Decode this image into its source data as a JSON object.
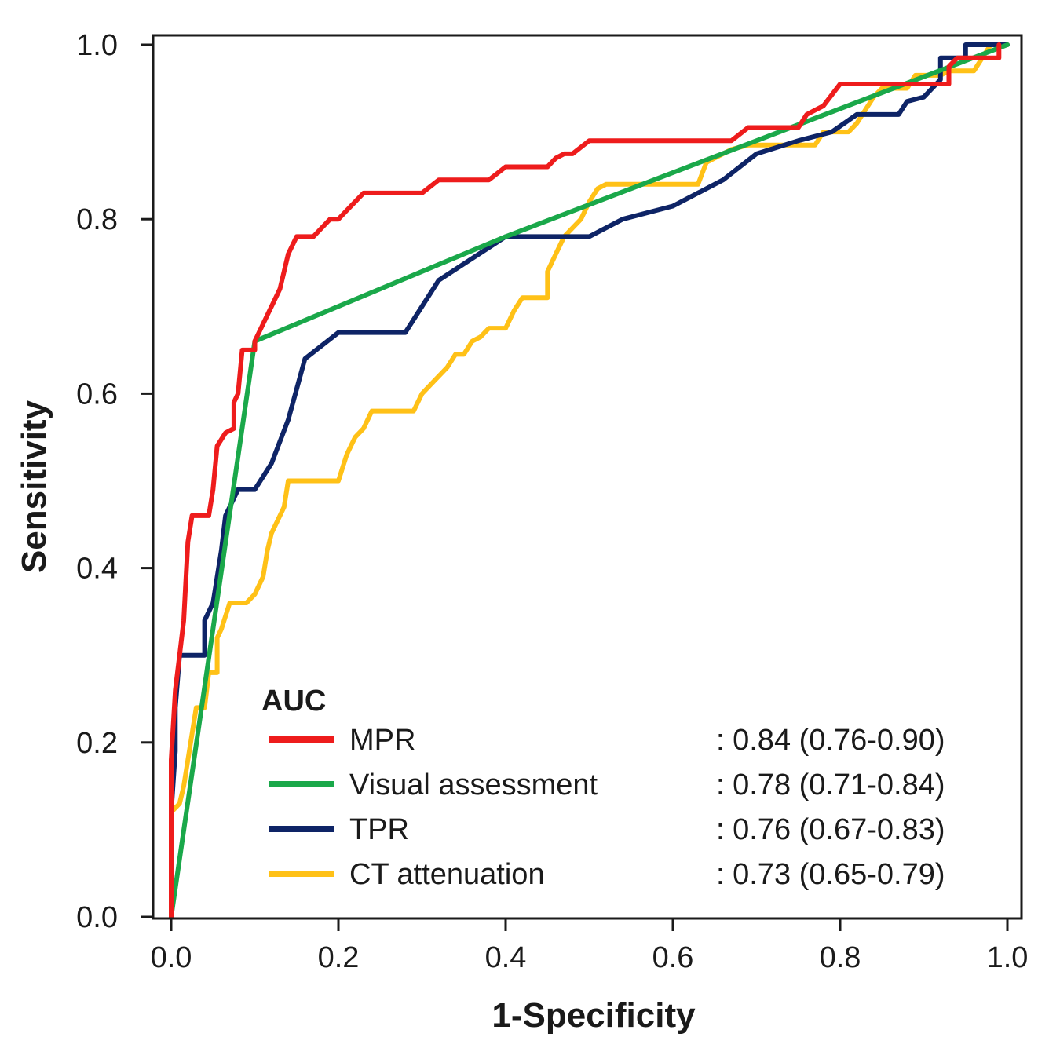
{
  "chart_data": {
    "type": "line",
    "title": "",
    "xlabel": "1-Specificity",
    "ylabel": "Sensitivity",
    "xlim": [
      0,
      1
    ],
    "ylim": [
      0,
      1
    ],
    "x_ticks": [
      "0.0",
      "0.2",
      "0.4",
      "0.6",
      "0.8",
      "1.0"
    ],
    "y_ticks": [
      "0.0",
      "0.2",
      "0.4",
      "0.6",
      "0.8",
      "1.0"
    ],
    "grid": false,
    "legend": {
      "title": "AUC",
      "placement": "bottom-right"
    },
    "series": [
      {
        "name": "MPR",
        "auc_label": ": 0.84 (0.76-0.90)",
        "color": "#ee1c1c",
        "points": [
          [
            0,
            0
          ],
          [
            0,
            0.18
          ],
          [
            0.005,
            0.26
          ],
          [
            0.01,
            0.3
          ],
          [
            0.015,
            0.34
          ],
          [
            0.02,
            0.43
          ],
          [
            0.025,
            0.46
          ],
          [
            0.045,
            0.46
          ],
          [
            0.05,
            0.49
          ],
          [
            0.055,
            0.54
          ],
          [
            0.065,
            0.555
          ],
          [
            0.075,
            0.56
          ],
          [
            0.075,
            0.59
          ],
          [
            0.08,
            0.6
          ],
          [
            0.085,
            0.65
          ],
          [
            0.1,
            0.65
          ],
          [
            0.1,
            0.66
          ],
          [
            0.11,
            0.68
          ],
          [
            0.12,
            0.7
          ],
          [
            0.13,
            0.72
          ],
          [
            0.14,
            0.76
          ],
          [
            0.15,
            0.78
          ],
          [
            0.16,
            0.78
          ],
          [
            0.17,
            0.78
          ],
          [
            0.18,
            0.79
          ],
          [
            0.19,
            0.8
          ],
          [
            0.2,
            0.8
          ],
          [
            0.21,
            0.81
          ],
          [
            0.22,
            0.82
          ],
          [
            0.23,
            0.83
          ],
          [
            0.3,
            0.83
          ],
          [
            0.32,
            0.845
          ],
          [
            0.38,
            0.845
          ],
          [
            0.4,
            0.86
          ],
          [
            0.45,
            0.86
          ],
          [
            0.46,
            0.87
          ],
          [
            0.47,
            0.875
          ],
          [
            0.48,
            0.875
          ],
          [
            0.5,
            0.89
          ],
          [
            0.67,
            0.89
          ],
          [
            0.69,
            0.905
          ],
          [
            0.75,
            0.905
          ],
          [
            0.76,
            0.92
          ],
          [
            0.78,
            0.93
          ],
          [
            0.8,
            0.955
          ],
          [
            0.93,
            0.955
          ],
          [
            0.93,
            0.975
          ],
          [
            0.94,
            0.985
          ],
          [
            0.99,
            0.985
          ],
          [
            0.99,
            1.0
          ]
        ]
      },
      {
        "name": "Visual assessment",
        "auc_label": ": 0.78 (0.71-0.84)",
        "color": "#1aa84a",
        "points": [
          [
            0,
            0
          ],
          [
            0.1,
            0.66
          ],
          [
            0.4,
            0.78
          ],
          [
            1.0,
            1.0
          ]
        ]
      },
      {
        "name": "TPR",
        "auc_label": ": 0.76 (0.67-0.83)",
        "color": "#0e2466",
        "points": [
          [
            0,
            0.12
          ],
          [
            0.005,
            0.19
          ],
          [
            0.005,
            0.24
          ],
          [
            0.01,
            0.3
          ],
          [
            0.04,
            0.3
          ],
          [
            0.04,
            0.34
          ],
          [
            0.05,
            0.36
          ],
          [
            0.06,
            0.42
          ],
          [
            0.065,
            0.46
          ],
          [
            0.08,
            0.49
          ],
          [
            0.1,
            0.49
          ],
          [
            0.12,
            0.52
          ],
          [
            0.14,
            0.57
          ],
          [
            0.16,
            0.64
          ],
          [
            0.2,
            0.67
          ],
          [
            0.28,
            0.67
          ],
          [
            0.3,
            0.7
          ],
          [
            0.32,
            0.73
          ],
          [
            0.4,
            0.78
          ],
          [
            0.5,
            0.78
          ],
          [
            0.54,
            0.8
          ],
          [
            0.6,
            0.815
          ],
          [
            0.66,
            0.845
          ],
          [
            0.7,
            0.875
          ],
          [
            0.75,
            0.89
          ],
          [
            0.79,
            0.9
          ],
          [
            0.82,
            0.92
          ],
          [
            0.87,
            0.92
          ],
          [
            0.88,
            0.935
          ],
          [
            0.9,
            0.94
          ],
          [
            0.92,
            0.96
          ],
          [
            0.92,
            0.985
          ],
          [
            0.95,
            0.985
          ],
          [
            0.95,
            1.0
          ],
          [
            1.0,
            1.0
          ]
        ]
      },
      {
        "name": "CT attenuation",
        "auc_label": ": 0.73 (0.65-0.79)",
        "color": "#ffc117",
        "points": [
          [
            0,
            0
          ],
          [
            0,
            0.12
          ],
          [
            0.01,
            0.13
          ],
          [
            0.015,
            0.15
          ],
          [
            0.02,
            0.18
          ],
          [
            0.025,
            0.21
          ],
          [
            0.03,
            0.24
          ],
          [
            0.04,
            0.24
          ],
          [
            0.045,
            0.28
          ],
          [
            0.055,
            0.28
          ],
          [
            0.055,
            0.32
          ],
          [
            0.06,
            0.33
          ],
          [
            0.07,
            0.36
          ],
          [
            0.09,
            0.36
          ],
          [
            0.1,
            0.37
          ],
          [
            0.11,
            0.39
          ],
          [
            0.115,
            0.42
          ],
          [
            0.12,
            0.44
          ],
          [
            0.13,
            0.46
          ],
          [
            0.135,
            0.47
          ],
          [
            0.14,
            0.5
          ],
          [
            0.2,
            0.5
          ],
          [
            0.21,
            0.53
          ],
          [
            0.22,
            0.55
          ],
          [
            0.23,
            0.56
          ],
          [
            0.24,
            0.58
          ],
          [
            0.29,
            0.58
          ],
          [
            0.3,
            0.6
          ],
          [
            0.31,
            0.61
          ],
          [
            0.32,
            0.62
          ],
          [
            0.33,
            0.63
          ],
          [
            0.34,
            0.645
          ],
          [
            0.35,
            0.645
          ],
          [
            0.36,
            0.66
          ],
          [
            0.37,
            0.665
          ],
          [
            0.38,
            0.675
          ],
          [
            0.4,
            0.675
          ],
          [
            0.41,
            0.695
          ],
          [
            0.42,
            0.71
          ],
          [
            0.45,
            0.71
          ],
          [
            0.45,
            0.74
          ],
          [
            0.46,
            0.76
          ],
          [
            0.47,
            0.78
          ],
          [
            0.48,
            0.79
          ],
          [
            0.49,
            0.8
          ],
          [
            0.5,
            0.82
          ],
          [
            0.51,
            0.835
          ],
          [
            0.52,
            0.84
          ],
          [
            0.63,
            0.84
          ],
          [
            0.64,
            0.865
          ],
          [
            0.65,
            0.87
          ],
          [
            0.67,
            0.88
          ],
          [
            0.69,
            0.885
          ],
          [
            0.77,
            0.885
          ],
          [
            0.78,
            0.9
          ],
          [
            0.81,
            0.9
          ],
          [
            0.82,
            0.91
          ],
          [
            0.83,
            0.925
          ],
          [
            0.84,
            0.94
          ],
          [
            0.85,
            0.95
          ],
          [
            0.88,
            0.95
          ],
          [
            0.89,
            0.965
          ],
          [
            0.92,
            0.965
          ],
          [
            0.93,
            0.97
          ],
          [
            0.96,
            0.97
          ],
          [
            0.97,
            0.985
          ],
          [
            0.98,
            1.0
          ],
          [
            1.0,
            1.0
          ]
        ]
      }
    ]
  }
}
